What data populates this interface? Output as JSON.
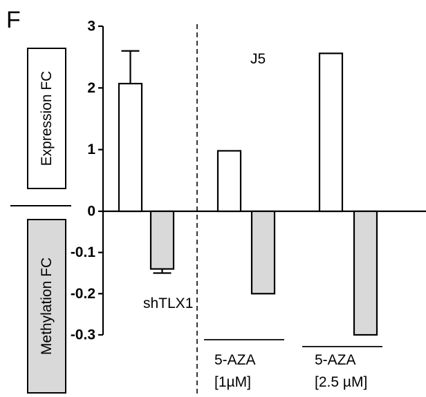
{
  "chart_data": {
    "type": "bar",
    "panel_label": "F",
    "upper_axis_label": "Expression FC",
    "lower_axis_label": "Methylation FC",
    "inset_label": "J5",
    "upper_ticks": [
      "3",
      "2",
      "1",
      "0"
    ],
    "lower_ticks": [
      "-0.1",
      "-0.2",
      "-0.3"
    ],
    "upper_ylim": [
      0,
      3
    ],
    "lower_ylim": [
      -0.3,
      0
    ],
    "colors": {
      "expression": "#ffffff",
      "methylation": "#d9d9d9",
      "stroke": "#000000"
    },
    "groups": [
      {
        "label_lines": [
          "shTLX1"
        ],
        "expression": 2.07,
        "expression_error": 0.53,
        "methylation": -0.14,
        "methylation_error": 0.01
      },
      {
        "label_lines": [
          "5-AZA",
          "[1µM]"
        ],
        "expression": 0.98,
        "methylation": -0.2
      },
      {
        "label_lines": [
          "5-AZA",
          "[2.5 µM]"
        ],
        "expression": 2.56,
        "methylation": -0.3
      }
    ]
  }
}
